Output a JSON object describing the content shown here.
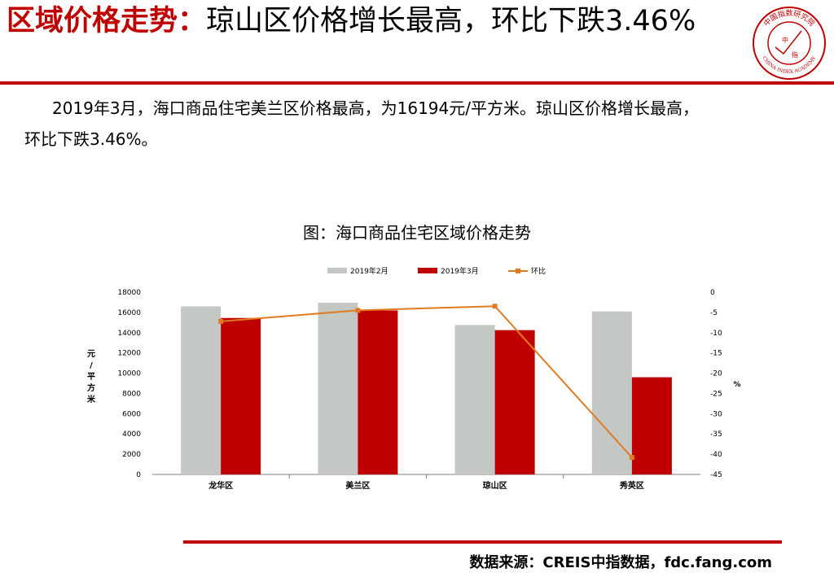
{
  "header": {
    "title_red": "区域价格走势：",
    "title_rest": "琼山区价格增长最高，环比下跌3.46%"
  },
  "logo": {
    "icon": "china-index-academy-seal",
    "text_top": "中国指数研究院",
    "text_bottom": "CHINA INDEX ACADEMY",
    "center_top": "中",
    "center_bottom": "指",
    "color": "#c00000"
  },
  "body": {
    "line1": "2019年3月，海口商品住宅美兰区价格最高，为16194元/平方米。琼山区价格增长最高，",
    "line2": "环比下跌3.46%。"
  },
  "chart_title": "图：海口商品住宅区域价格走势",
  "chart_data": {
    "type": "bar",
    "categories": [
      "龙华区",
      "美兰区",
      "琼山区",
      "秀英区"
    ],
    "series": [
      {
        "name": "2019年2月",
        "kind": "bar",
        "axis": "left",
        "color": "#c4c8c5",
        "values": [
          16600,
          16950,
          14750,
          16100
        ]
      },
      {
        "name": "2019年3月",
        "kind": "bar",
        "axis": "left",
        "color": "#c00000",
        "values": [
          15450,
          16194,
          14250,
          9600
        ]
      },
      {
        "name": "环比",
        "kind": "line",
        "axis": "right",
        "color": "#e07b22",
        "values": [
          -7.2,
          -4.5,
          -3.46,
          -40.8
        ]
      }
    ],
    "ylabel": "元/平方米",
    "y2label": "%",
    "ylim": [
      0,
      18000
    ],
    "yticks": [
      0,
      2000,
      4000,
      6000,
      8000,
      10000,
      12000,
      14000,
      16000,
      18000
    ],
    "y2lim": [
      -45,
      0
    ],
    "y2ticks": [
      0,
      -5,
      -10,
      -15,
      -20,
      -25,
      -30,
      -35,
      -40,
      -45
    ],
    "legend_position": "top",
    "grid": false
  },
  "footer": {
    "source": "数据来源：CREIS中指数据，fdc.fang.com"
  }
}
